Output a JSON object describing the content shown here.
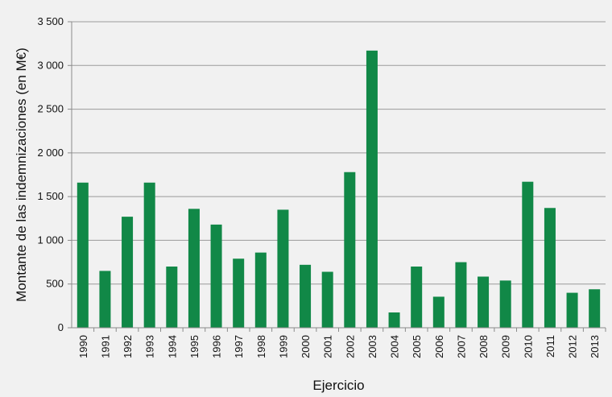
{
  "chart_data": {
    "type": "bar",
    "title": "",
    "xlabel": "Ejercicio",
    "ylabel": "Montante de las indemnizaciones (en M€)",
    "ylim": [
      0,
      3500
    ],
    "yticks": [
      0,
      500,
      1000,
      1500,
      2000,
      2500,
      3000,
      3500
    ],
    "ytick_labels": [
      "0",
      "500",
      "1 000",
      "1 500",
      "2 000",
      "2 500",
      "3 000",
      "3 500"
    ],
    "grid": true,
    "legend": "none",
    "bar_color": "#118847",
    "categories": [
      "1990",
      "1991",
      "1992",
      "1993",
      "1994",
      "1995",
      "1996",
      "1997",
      "1998",
      "1999",
      "2000",
      "2001",
      "2002",
      "2003",
      "2004",
      "2005",
      "2006",
      "2007",
      "2008",
      "2009",
      "2010",
      "2011",
      "2012",
      "2013"
    ],
    "values": [
      1660,
      650,
      1270,
      1660,
      700,
      1360,
      1180,
      790,
      860,
      1350,
      720,
      640,
      1780,
      3170,
      175,
      700,
      355,
      750,
      585,
      540,
      1670,
      1370,
      400,
      440
    ]
  }
}
